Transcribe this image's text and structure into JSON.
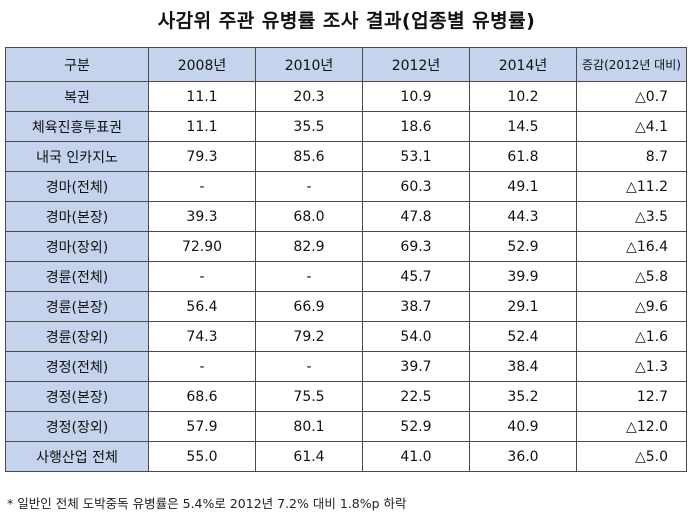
{
  "title": "사감위 주관 유병률 조사 결과(업종별 유병률)",
  "table": {
    "headers": [
      "구분",
      "2008년",
      "2010년",
      "2012년",
      "2014년",
      "증감(2012년 대비)"
    ],
    "rows": [
      {
        "label": "복권",
        "y2008": "11.1",
        "y2010": "20.3",
        "y2012": "10.9",
        "y2014": "10.2",
        "change": "△0.7"
      },
      {
        "label": "체육진흥투표권",
        "y2008": "11.1",
        "y2010": "35.5",
        "y2012": "18.6",
        "y2014": "14.5",
        "change": "△4.1"
      },
      {
        "label": "내국 인카지노",
        "y2008": "79.3",
        "y2010": "85.6",
        "y2012": "53.1",
        "y2014": "61.8",
        "change": "8.7"
      },
      {
        "label": "경마(전체)",
        "y2008": "-",
        "y2010": "-",
        "y2012": "60.3",
        "y2014": "49.1",
        "change": "△11.2"
      },
      {
        "label": "경마(본장)",
        "y2008": "39.3",
        "y2010": "68.0",
        "y2012": "47.8",
        "y2014": "44.3",
        "change": "△3.5"
      },
      {
        "label": "경마(장외)",
        "y2008": "72.90",
        "y2010": "82.9",
        "y2012": "69.3",
        "y2014": "52.9",
        "change": "△16.4"
      },
      {
        "label": "경륜(전체)",
        "y2008": "-",
        "y2010": "-",
        "y2012": "45.7",
        "y2014": "39.9",
        "change": "△5.8"
      },
      {
        "label": "경륜(본장)",
        "y2008": "56.4",
        "y2010": "66.9",
        "y2012": "38.7",
        "y2014": "29.1",
        "change": "△9.6"
      },
      {
        "label": "경륜(장외)",
        "y2008": "74.3",
        "y2010": "79.2",
        "y2012": "54.0",
        "y2014": "52.4",
        "change": "△1.6"
      },
      {
        "label": "경정(전체)",
        "y2008": "-",
        "y2010": "-",
        "y2012": "39.7",
        "y2014": "38.4",
        "change": "△1.3"
      },
      {
        "label": "경정(본장)",
        "y2008": "68.6",
        "y2010": "75.5",
        "y2012": "22.5",
        "y2014": "35.2",
        "change": "12.7"
      },
      {
        "label": "경정(장외)",
        "y2008": "57.9",
        "y2010": "80.1",
        "y2012": "52.9",
        "y2014": "40.9",
        "change": "△12.0"
      },
      {
        "label": "사행산업 전체",
        "y2008": "55.0",
        "y2010": "61.4",
        "y2012": "41.0",
        "y2014": "36.0",
        "change": "△5.0"
      }
    ]
  },
  "footnote": "* 일반인 전체 도박중독 유병률은 5.4%로 2012년 7.2% 대비 1.8%p 하락",
  "colors": {
    "header_bg": "#c5d3ec",
    "border": "#4a4a4a"
  }
}
